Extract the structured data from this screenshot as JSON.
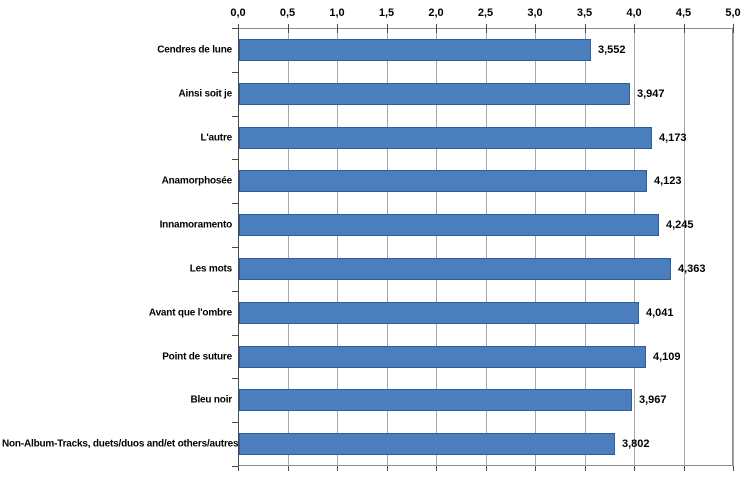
{
  "chart_data": {
    "type": "bar",
    "orientation": "horizontal",
    "title": "",
    "xlabel": "",
    "ylabel": "",
    "categories": [
      "Cendres de lune",
      "Ainsi soit je",
      "L'autre",
      "Anamorphosée",
      "Innamoramento",
      "Les mots",
      "Avant que l'ombre",
      "Point de suture",
      "Bleu noir",
      "Non-Album-Tracks, duets/duos and/et others/autres"
    ],
    "values": [
      3.552,
      3.947,
      4.173,
      4.123,
      4.245,
      4.363,
      4.041,
      4.109,
      3.967,
      3.802
    ],
    "value_labels": [
      "3,552",
      "3,947",
      "4,173",
      "4,123",
      "4,245",
      "4,363",
      "4,041",
      "4,109",
      "3,967",
      "3,802"
    ],
    "x_axis": {
      "min": 0,
      "max": 5,
      "step": 0.5,
      "position": "top",
      "tick_labels": [
        "0,0",
        "0,5",
        "1,0",
        "1,5",
        "2,0",
        "2,5",
        "3,0",
        "3,5",
        "4,0",
        "4,5",
        "5,0"
      ]
    },
    "grid": true,
    "legend": false,
    "colors": {
      "bar_fill": "#4B7EBC",
      "bar_border": "#2E5B9F",
      "gridline": "#A8A8A8",
      "plot_border": "#8C8C8C",
      "axis_line": "#4A4A4A",
      "text": "#000000",
      "background": "#FFFFFF"
    }
  }
}
